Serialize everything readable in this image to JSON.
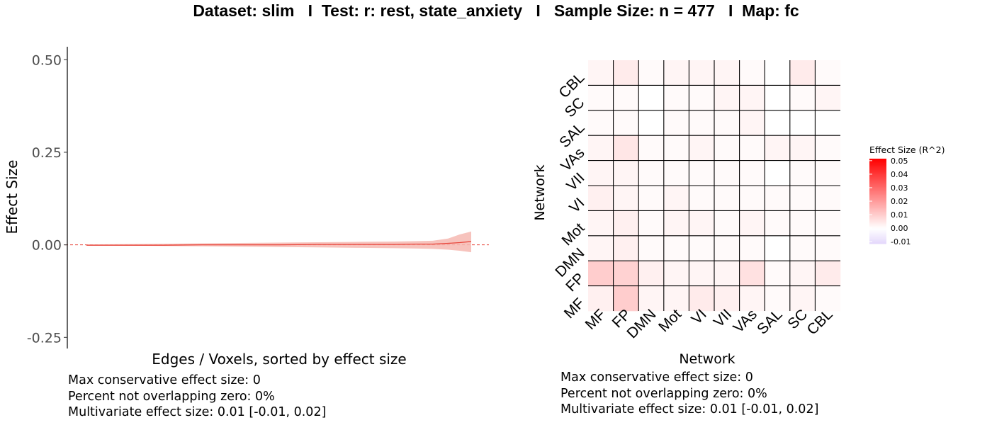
{
  "title": "Dataset: slim   I  Test: r: rest, state_anxiety   I   Sample Size: n = 477   I  Map: fc",
  "chart_data": [
    {
      "type": "area",
      "title": "",
      "xlabel": "Edges / Voxels, sorted by effect size",
      "ylabel": "Effect Size",
      "ylim": [
        -0.28,
        0.535
      ],
      "yticks": [
        "0.50",
        "0.25",
        "0.00",
        "-0.25"
      ],
      "ytick_values": [
        0.5,
        0.25,
        0.0,
        -0.25
      ],
      "grid": false,
      "zero_line": {
        "y": 0,
        "style": "dashed",
        "color": "#e8463b"
      },
      "series": [
        {
          "x": [
            0,
            0.1,
            0.2,
            0.3,
            0.4,
            0.5,
            0.6,
            0.7,
            0.8,
            0.86,
            0.9,
            0.94,
            0.97,
            1.0
          ],
          "estimate": [
            -0.001,
            -0.001,
            -0.001,
            0.0,
            0.0,
            0.0,
            0.001,
            0.001,
            0.001,
            0.002,
            0.002,
            0.004,
            0.006,
            0.009
          ],
          "lower": [
            -0.001,
            -0.002,
            -0.003,
            -0.004,
            -0.005,
            -0.006,
            -0.007,
            -0.008,
            -0.009,
            -0.01,
            -0.011,
            -0.013,
            -0.016,
            -0.02
          ],
          "upper": [
            0.001,
            0.002,
            0.003,
            0.004,
            0.005,
            0.006,
            0.007,
            0.008,
            0.009,
            0.01,
            0.011,
            0.017,
            0.028,
            0.036
          ],
          "line_color": "#e8463b",
          "band_color": "#f6b8b2"
        }
      ],
      "stats": [
        "Max conservative effect size: 0",
        "Percent not overlapping zero: 0%",
        "Multivariate effect size: 0.01 [-0.01, 0.02]"
      ]
    },
    {
      "type": "heatmap",
      "title": "",
      "xlabel": "Network",
      "ylabel": "Network",
      "x_categories": [
        "MF",
        "FP",
        "DMN",
        "Mot",
        "VI",
        "VII",
        "VAs",
        "SAL",
        "SC",
        "CBL"
      ],
      "y_categories": [
        "MF",
        "FP",
        "DMN",
        "Mot",
        "VI",
        "VII",
        "VAs",
        "SAL",
        "SC",
        "CBL"
      ],
      "values": [
        [
          0.003,
          0.01,
          0.002,
          0.002,
          0.004,
          0.003,
          0.002,
          0.001,
          0.002,
          0.001
        ],
        [
          0.01,
          0.009,
          0.003,
          0.002,
          0.002,
          0.002,
          0.006,
          0.001,
          0.002,
          0.004
        ],
        [
          0.002,
          0.003,
          0.001,
          0.001,
          0.001,
          0.001,
          0.001,
          0.0,
          0.001,
          0.001
        ],
        [
          0.002,
          0.003,
          0.001,
          0.002,
          0.002,
          0.001,
          0.002,
          0.001,
          0.001,
          0.001
        ],
        [
          0.003,
          0.002,
          0.001,
          0.002,
          0.001,
          0.001,
          0.001,
          0.001,
          0.001,
          0.001
        ],
        [
          0.002,
          0.002,
          0.001,
          0.001,
          0.001,
          0.001,
          0.001,
          0.0,
          0.001,
          0.001
        ],
        [
          0.002,
          0.005,
          0.001,
          0.001,
          0.002,
          0.001,
          0.001,
          0.002,
          0.002,
          0.001
        ],
        [
          0.001,
          0.001,
          0.0,
          0.001,
          0.001,
          0.001,
          0.002,
          0.0,
          0.0,
          0.0
        ],
        [
          0.001,
          0.001,
          0.0,
          0.001,
          0.001,
          0.002,
          0.002,
          0.0,
          0.001,
          0.002
        ],
        [
          0.002,
          0.004,
          0.001,
          0.002,
          0.002,
          0.002,
          0.001,
          0.0,
          0.004,
          0.001
        ]
      ],
      "legend": {
        "title": "Effect Size (R^2)",
        "placement": "right",
        "ticks": [
          "0.05",
          "0.04",
          "0.03",
          "0.02",
          "0.01",
          "0.00",
          "-0.01"
        ],
        "tick_values": [
          0.05,
          0.04,
          0.03,
          0.02,
          0.01,
          0.0,
          -0.01
        ],
        "range": [
          -0.0115,
          0.0515
        ],
        "color_max": "#ff0000",
        "color_mid": "#ffffff",
        "color_min": "#e3d7fb"
      },
      "stats": [
        "Max conservative effect size: 0",
        "Percent not overlapping zero: 0%",
        "Multivariate effect size: 0.01 [-0.01, 0.02]"
      ]
    }
  ]
}
